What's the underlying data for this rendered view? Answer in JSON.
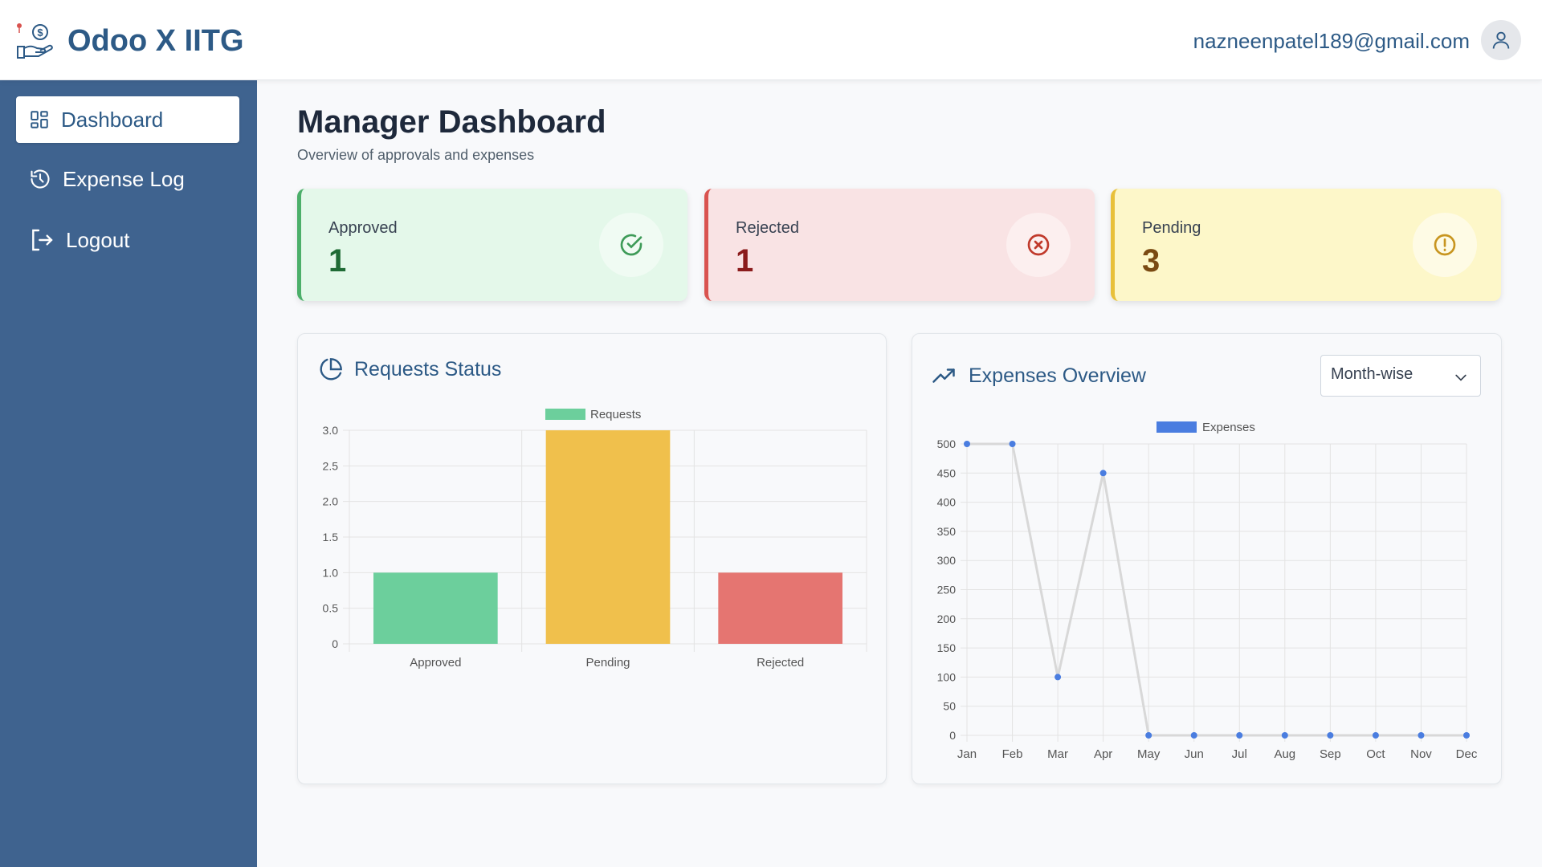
{
  "app": {
    "title": "Odoo X IITG",
    "user_email": "nazneenpatel189@gmail.com"
  },
  "sidebar": {
    "items": [
      {
        "label": "Dashboard",
        "icon": "grid-icon",
        "active": true
      },
      {
        "label": "Expense Log",
        "icon": "history-icon",
        "active": false
      },
      {
        "label": "Logout",
        "icon": "logout-icon",
        "active": false
      }
    ]
  },
  "page": {
    "title": "Manager Dashboard",
    "subtitle": "Overview of approvals and expenses"
  },
  "stats": {
    "approved": {
      "label": "Approved",
      "value": "1",
      "icon": "check-circle-icon",
      "color": "#4caf6a"
    },
    "rejected": {
      "label": "Rejected",
      "value": "1",
      "icon": "x-circle-icon",
      "color": "#d9534f"
    },
    "pending": {
      "label": "Pending",
      "value": "3",
      "icon": "alert-circle-icon",
      "color": "#e8c03a"
    }
  },
  "requests_panel": {
    "title": "Requests Status",
    "icon": "pie-chart-icon"
  },
  "expenses_panel": {
    "title": "Expenses Overview",
    "icon": "trending-up-icon",
    "period_select": {
      "value": "Month-wise"
    }
  },
  "chart_data": [
    {
      "type": "bar",
      "legend": [
        "Requests"
      ],
      "legend_position": "top",
      "categories": [
        "Approved",
        "Pending",
        "Rejected"
      ],
      "series": [
        {
          "name": "Requests",
          "values": [
            1,
            3,
            1
          ],
          "colors": [
            "#6ccf9c",
            "#f0c04c",
            "#e57571"
          ]
        }
      ],
      "y_ticks": [
        "0",
        "0.5",
        "1.0",
        "1.5",
        "2.0",
        "2.5",
        "3.0"
      ],
      "ylim": [
        0,
        3
      ],
      "grid": true
    },
    {
      "type": "line",
      "legend": [
        "Expenses"
      ],
      "legend_position": "top",
      "x": [
        "Jan",
        "Feb",
        "Mar",
        "Apr",
        "May",
        "Jun",
        "Jul",
        "Aug",
        "Sep",
        "Oct",
        "Nov",
        "Dec"
      ],
      "series": [
        {
          "name": "Expenses",
          "values": [
            500,
            500,
            100,
            450,
            0,
            0,
            0,
            0,
            0,
            0,
            0,
            0
          ],
          "line_color": "#d8d8d8",
          "point_color": "#4a7de0"
        }
      ],
      "y_ticks": [
        "0",
        "50",
        "100",
        "150",
        "200",
        "250",
        "300",
        "350",
        "400",
        "450",
        "500"
      ],
      "ylim": [
        0,
        500
      ],
      "grid": true
    }
  ]
}
